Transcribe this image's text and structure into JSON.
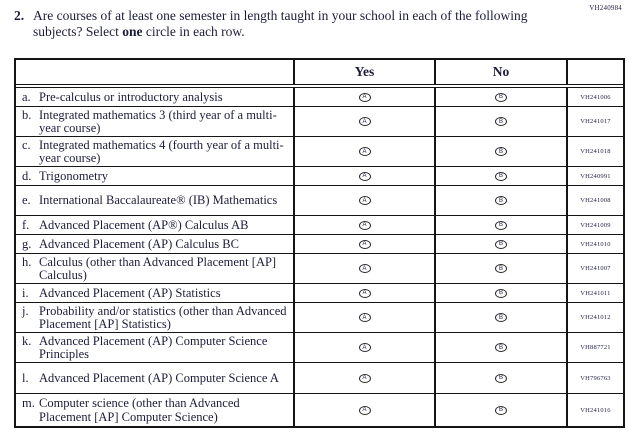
{
  "form_code": "VH240984",
  "question": {
    "number": "2.",
    "text_part1": "Are courses of at least one semester in length taught in your school in each of the following subjects? Select ",
    "text_bold": "one",
    "text_part2": " circle in each row."
  },
  "table": {
    "columns": {
      "yes": "Yes",
      "no": "No"
    },
    "bubbles": {
      "yes": "A",
      "no": "B"
    },
    "rows": [
      {
        "letter": "a.",
        "label": "Pre-calculus or introductory analysis",
        "code": "VH241006"
      },
      {
        "letter": "b.",
        "label": "Integrated mathematics 3 (third year of a multi-year course)",
        "code": "VH241017"
      },
      {
        "letter": "c.",
        "label": "Integrated mathematics 4 (fourth year of a multi-year course)",
        "code": "VH241018"
      },
      {
        "letter": "d.",
        "label": "Trigonometry",
        "code": "VH240991"
      },
      {
        "letter": "e.",
        "label": "International Baccalaureate® (IB) Mathematics",
        "code": "VH241008"
      },
      {
        "letter": "f.",
        "label": "Advanced Placement (AP®) Calculus AB",
        "code": "VH241009"
      },
      {
        "letter": "g.",
        "label": "Advanced Placement (AP) Calculus BC",
        "code": "VH241010"
      },
      {
        "letter": "h.",
        "label": "Calculus (other than Advanced Placement [AP] Calculus)",
        "code": "VH241007"
      },
      {
        "letter": "i.",
        "label": "Advanced Placement (AP) Statistics",
        "code": "VH241011"
      },
      {
        "letter": "j.",
        "label": "Probability and/or statistics (other than Advanced Placement [AP] Statistics)",
        "code": "VH241012"
      },
      {
        "letter": "k.",
        "label": "Advanced Placement (AP) Computer Science Principles",
        "code": "VH887721"
      },
      {
        "letter": "l.",
        "label": "Advanced Placement (AP) Computer Science A",
        "code": "VH796763"
      },
      {
        "letter": "m.",
        "label": "Computer science (other than Advanced Placement [AP] Computer Science)",
        "code": "VH241016"
      }
    ]
  }
}
